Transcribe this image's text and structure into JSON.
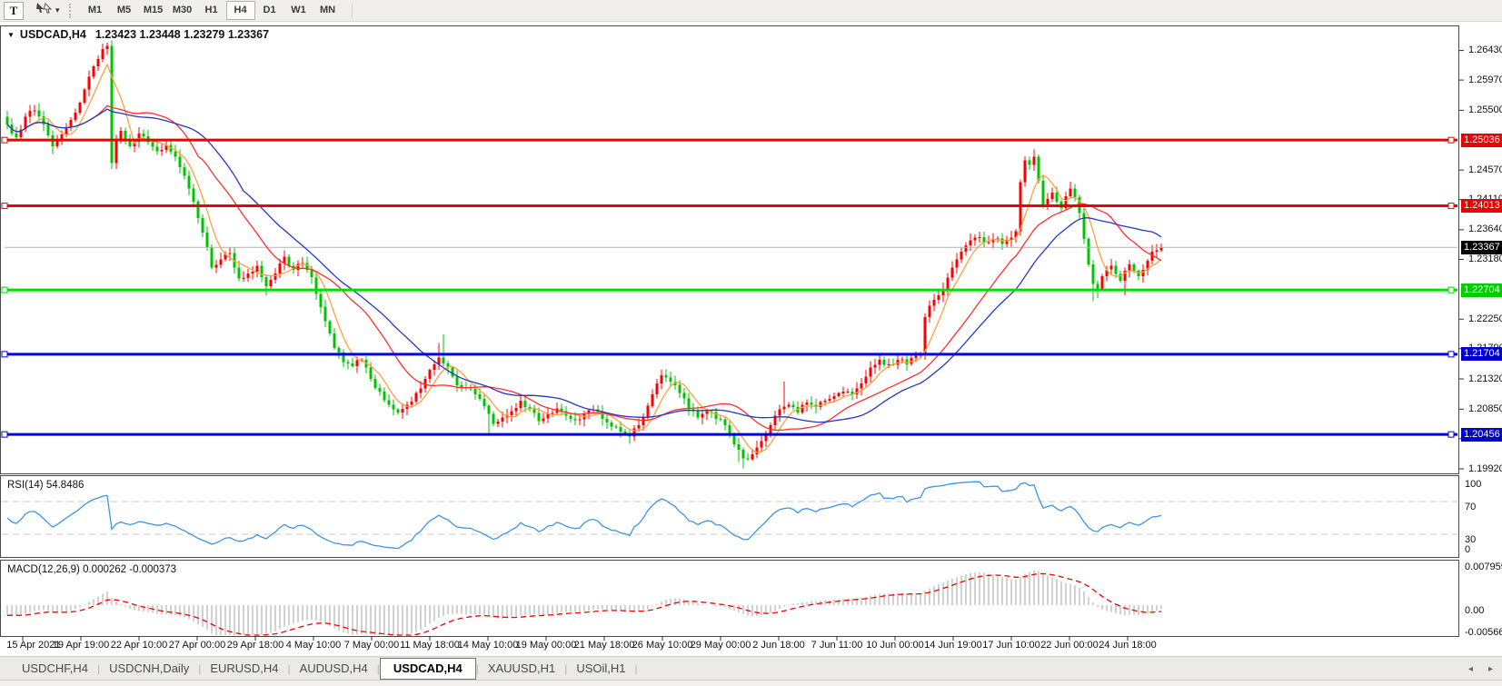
{
  "toolbar": {
    "text_tool_label": "T",
    "dropdown_caret": "▾",
    "timeframes": [
      "M1",
      "M5",
      "M15",
      "M30",
      "H1",
      "H4",
      "D1",
      "W1",
      "MN"
    ],
    "active_timeframe": "H4"
  },
  "header": {
    "dropdown_glyph": "▼",
    "symbol": "USDCAD,H4",
    "ohlc": "1.23423 1.23448 1.23279 1.23367"
  },
  "rsi": {
    "label_full": "RSI(14) 54.8486",
    "line_color": "#3d94e6",
    "level_values": [
      100,
      70,
      30,
      0
    ],
    "level_labels": [
      "100",
      "70",
      "30",
      "0"
    ],
    "dashed_levels": [
      70,
      30
    ]
  },
  "macd": {
    "label_full": "MACD(12,26,9) 0.000262 -0.000373",
    "scale_values": [
      0.007959,
      0,
      -0.005663
    ],
    "scale_labels": [
      "0.007959",
      "0.00",
      "-0.005663"
    ],
    "bar_color": "#a6a6a6",
    "signal_color": "#f40000"
  },
  "price_axis": {
    "ticks": [
      {
        "price": 1.2643,
        "label": "1.26430"
      },
      {
        "price": 1.2597,
        "label": "1.25970"
      },
      {
        "price": 1.255,
        "label": "1.25500"
      },
      {
        "price": 1.2457,
        "label": "1.24570"
      },
      {
        "price": 1.2411,
        "label": "1.24110"
      },
      {
        "price": 1.2364,
        "label": "1.23640"
      },
      {
        "price": 1.2318,
        "label": "1.23180"
      },
      {
        "price": 1.2225,
        "label": "1.22250"
      },
      {
        "price": 1.2179,
        "label": "1.21790"
      },
      {
        "price": 1.2132,
        "label": "1.21320"
      },
      {
        "price": 1.2085,
        "label": "1.20850"
      },
      {
        "price": 1.2039,
        "label": "1.20390"
      },
      {
        "price": 1.1992,
        "label": "1.19920"
      }
    ],
    "badges": [
      {
        "price": 1.25036,
        "label": "1.25036",
        "bg": "#ee0000"
      },
      {
        "price": 1.24013,
        "label": "1.24013",
        "bg": "#ee0000"
      },
      {
        "price": 1.23367,
        "label": "1.23367",
        "bg": "#000000"
      },
      {
        "price": 1.22704,
        "label": "1.22704",
        "bg": "#00cc00"
      },
      {
        "price": 1.21704,
        "label": "1.21704",
        "bg": "#0000cc"
      },
      {
        "price": 1.20456,
        "label": "1.20456",
        "bg": "#0000cc"
      }
    ]
  },
  "time_axis": {
    "labels": [
      "15 Apr 2021",
      "19 Apr 19:00",
      "22 Apr 10:00",
      "27 Apr 00:00",
      "29 Apr 18:00",
      "4 May 10:00",
      "7 May 00:00",
      "11 May 18:00",
      "14 May 10:00",
      "19 May 00:00",
      "21 May 18:00",
      "26 May 10:00",
      "29 May 00:00",
      "2 Jun 18:00",
      "7 Jun 11:00",
      "10 Jun 00:00",
      "14 Jun 19:00",
      "17 Jun 10:00",
      "22 Jun 00:00",
      "24 Jun 18:00"
    ]
  },
  "tabs": {
    "items": [
      "USDCHF,H4",
      "USDCNH,Daily",
      "EURUSD,H4",
      "AUDUSD,H4",
      "USDCAD,H4",
      "XAUUSD,H1",
      "USOil,H1"
    ],
    "active": "USDCAD,H4",
    "scroll_left_icon": "◂",
    "scroll_right_icon": "▸"
  },
  "chart_data": {
    "type": "candlestick",
    "symbol": "USDCAD",
    "timeframe": "H4",
    "title": "USDCAD,H4",
    "candle_count": 255,
    "up_color": "#fe0000",
    "down_color": "#00c400",
    "price_range": {
      "top": 1.2682,
      "bottom": 1.1985
    },
    "last_close": 1.23367,
    "current_price_line_color": "#b2b2b2",
    "hlines": [
      {
        "price": 1.25036,
        "color": "#ee0000",
        "width": 3
      },
      {
        "price": 1.24013,
        "color": "#ee0000",
        "width": 3
      },
      {
        "price": 1.22704,
        "color": "#00dd00",
        "width": 3
      },
      {
        "price": 1.21704,
        "color": "#0000e0",
        "width": 3
      },
      {
        "price": 1.20456,
        "color": "#0000e0",
        "width": 3
      }
    ],
    "moving_averages": [
      {
        "period": 6,
        "color": "#ffa040"
      },
      {
        "period": 20,
        "color": "#ff3030"
      },
      {
        "period": 30,
        "color": "#2438c0"
      }
    ],
    "rsi_period": 14,
    "macd_params": [
      12,
      26,
      9
    ],
    "close_anchors": [
      [
        0,
        1.2528
      ],
      [
        2,
        1.2508
      ],
      [
        4,
        1.254
      ],
      [
        6,
        1.255
      ],
      [
        8,
        1.2528
      ],
      [
        10,
        1.2494
      ],
      [
        12,
        1.2512
      ],
      [
        14,
        1.2535
      ],
      [
        16,
        1.2562
      ],
      [
        18,
        1.2602
      ],
      [
        20,
        1.263
      ],
      [
        21,
        1.2645
      ],
      [
        22,
        1.265
      ],
      [
        23,
        1.2468
      ],
      [
        24,
        1.2505
      ],
      [
        25,
        1.2518
      ],
      [
        27,
        1.2494
      ],
      [
        29,
        1.2514
      ],
      [
        31,
        1.25
      ],
      [
        33,
        1.2486
      ],
      [
        35,
        1.2496
      ],
      [
        37,
        1.2478
      ],
      [
        39,
        1.2448
      ],
      [
        41,
        1.2408
      ],
      [
        43,
        1.236
      ],
      [
        45,
        1.2305
      ],
      [
        47,
        1.2318
      ],
      [
        49,
        1.2328
      ],
      [
        51,
        1.2288
      ],
      [
        53,
        1.2296
      ],
      [
        55,
        1.2308
      ],
      [
        57,
        1.2276
      ],
      [
        59,
        1.2296
      ],
      [
        61,
        1.2322
      ],
      [
        63,
        1.2302
      ],
      [
        65,
        1.2312
      ],
      [
        67,
        1.229
      ],
      [
        68,
        1.2264
      ],
      [
        70,
        1.2222
      ],
      [
        72,
        1.218
      ],
      [
        74,
        1.2158
      ],
      [
        76,
        1.2152
      ],
      [
        78,
        1.2162
      ],
      [
        80,
        1.2132
      ],
      [
        82,
        1.2112
      ],
      [
        84,
        1.2092
      ],
      [
        86,
        1.208
      ],
      [
        88,
        1.2092
      ],
      [
        90,
        1.211
      ],
      [
        92,
        1.2132
      ],
      [
        94,
        1.2155
      ],
      [
        95,
        1.2165
      ],
      [
        97,
        1.215
      ],
      [
        99,
        1.2122
      ],
      [
        101,
        1.2117
      ],
      [
        103,
        1.2108
      ],
      [
        105,
        1.209
      ],
      [
        107,
        1.2062
      ],
      [
        109,
        1.2072
      ],
      [
        111,
        1.2082
      ],
      [
        113,
        1.2098
      ],
      [
        115,
        1.2085
      ],
      [
        117,
        1.2066
      ],
      [
        119,
        1.2078
      ],
      [
        121,
        1.2086
      ],
      [
        123,
        1.2075
      ],
      [
        125,
        1.2068
      ],
      [
        127,
        1.2078
      ],
      [
        129,
        1.2085
      ],
      [
        131,
        1.207
      ],
      [
        133,
        1.2058
      ],
      [
        135,
        1.205
      ],
      [
        137,
        1.2042
      ],
      [
        139,
        1.206
      ],
      [
        141,
        1.209
      ],
      [
        143,
        1.2125
      ],
      [
        144,
        1.2138
      ],
      [
        146,
        1.2128
      ],
      [
        148,
        1.211
      ],
      [
        150,
        1.2085
      ],
      [
        152,
        1.2072
      ],
      [
        154,
        1.2082
      ],
      [
        156,
        1.207
      ],
      [
        158,
        1.206
      ],
      [
        160,
        1.203
      ],
      [
        162,
        1.2008
      ],
      [
        164,
        1.2015
      ],
      [
        166,
        1.2035
      ],
      [
        168,
        1.206
      ],
      [
        170,
        1.2085
      ],
      [
        172,
        1.2092
      ],
      [
        174,
        1.208
      ],
      [
        176,
        1.2095
      ],
      [
        178,
        1.2088
      ],
      [
        180,
        1.2098
      ],
      [
        182,
        1.2105
      ],
      [
        184,
        1.2112
      ],
      [
        186,
        1.2108
      ],
      [
        188,
        1.2125
      ],
      [
        190,
        1.215
      ],
      [
        192,
        1.2162
      ],
      [
        194,
        1.2155
      ],
      [
        196,
        1.2162
      ],
      [
        198,
        1.2155
      ],
      [
        200,
        1.2168
      ],
      [
        201,
        1.2172
      ],
      [
        202,
        1.2228
      ],
      [
        203,
        1.2246
      ],
      [
        205,
        1.2262
      ],
      [
        207,
        1.229
      ],
      [
        209,
        1.2318
      ],
      [
        211,
        1.234
      ],
      [
        213,
        1.2352
      ],
      [
        215,
        1.2344
      ],
      [
        217,
        1.235
      ],
      [
        219,
        1.2342
      ],
      [
        221,
        1.2352
      ],
      [
        222,
        1.2362
      ],
      [
        223,
        1.2438
      ],
      [
        224,
        1.2472
      ],
      [
        225,
        1.2465
      ],
      [
        226,
        1.2478
      ],
      [
        227,
        1.244
      ],
      [
        228,
        1.24
      ],
      [
        229,
        1.2412
      ],
      [
        230,
        1.2422
      ],
      [
        231,
        1.2408
      ],
      [
        232,
        1.2398
      ],
      [
        233,
        1.2416
      ],
      [
        234,
        1.2428
      ],
      [
        235,
        1.2415
      ],
      [
        236,
        1.239
      ],
      [
        237,
        1.235
      ],
      [
        238,
        1.231
      ],
      [
        239,
        1.228
      ],
      [
        240,
        1.2272
      ],
      [
        241,
        1.2292
      ],
      [
        242,
        1.2302
      ],
      [
        243,
        1.2308
      ],
      [
        244,
        1.2295
      ],
      [
        245,
        1.2285
      ],
      [
        246,
        1.23
      ],
      [
        247,
        1.231
      ],
      [
        248,
        1.23
      ],
      [
        249,
        1.2292
      ],
      [
        250,
        1.2302
      ],
      [
        251,
        1.2316
      ],
      [
        252,
        1.233
      ],
      [
        253,
        1.2332
      ],
      [
        254,
        1.23367
      ]
    ],
    "wick_overrides": {
      "10": {
        "l": 1.2482
      },
      "22": {
        "h": 1.2654
      },
      "23": {
        "l": 1.2461
      },
      "57": {
        "l": 1.2262
      },
      "95": {
        "h": 1.2188
      },
      "96": {
        "h": 1.2201
      },
      "106": {
        "l": 1.2046
      },
      "137": {
        "l": 1.2031
      },
      "161": {
        "l": 1.2003
      },
      "162": {
        "l": 1.1993
      },
      "171": {
        "h": 1.2128
      },
      "202": {
        "l": 1.2162
      },
      "226": {
        "h": 1.2489
      },
      "239": {
        "l": 1.2253
      },
      "240": {
        "l": 1.2258
      },
      "246": {
        "l": 1.2262
      }
    }
  }
}
